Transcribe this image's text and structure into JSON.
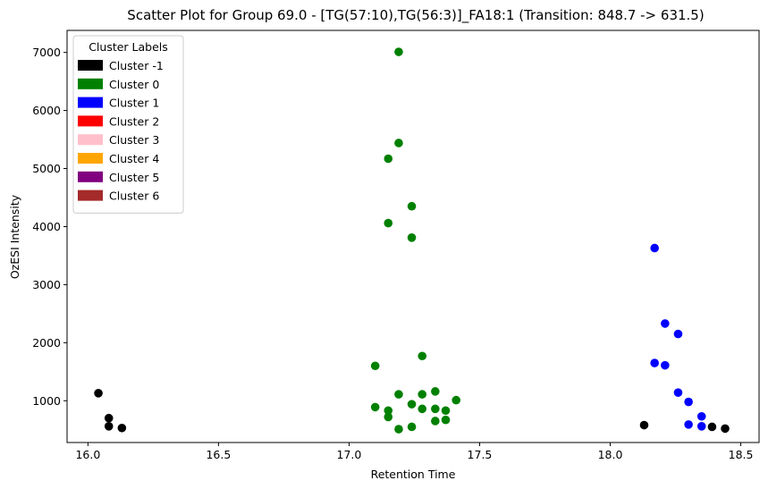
{
  "chart_data": {
    "type": "scatter",
    "title": "Scatter Plot for Group 69.0 - [TG(57:10),TG(56:3)]_FA18:1 (Transition: 848.7 -> 631.5)",
    "xlabel": "Retention Time",
    "ylabel": "OzESI Intensity",
    "xlim": [
      15.92,
      18.57
    ],
    "ylim": [
      280,
      7380
    ],
    "xticks": [
      16.0,
      16.5,
      17.0,
      17.5,
      18.0,
      18.5
    ],
    "xtick_labels": [
      "16.0",
      "16.5",
      "17.0",
      "17.5",
      "18.0",
      "18.5"
    ],
    "yticks": [
      1000,
      2000,
      3000,
      4000,
      5000,
      6000,
      7000
    ],
    "ytick_labels": [
      "1000",
      "2000",
      "3000",
      "4000",
      "5000",
      "6000",
      "7000"
    ],
    "legend": {
      "title": "Cluster Labels",
      "placement": "top-left",
      "entries": [
        {
          "label": "Cluster -1",
          "color": "#000000"
        },
        {
          "label": "Cluster 0",
          "color": "#008000"
        },
        {
          "label": "Cluster 1",
          "color": "#0000ff"
        },
        {
          "label": "Cluster 2",
          "color": "#ff0000"
        },
        {
          "label": "Cluster 3",
          "color": "#ffc0cb"
        },
        {
          "label": "Cluster 4",
          "color": "#ffa500"
        },
        {
          "label": "Cluster 5",
          "color": "#800080"
        },
        {
          "label": "Cluster 6",
          "color": "#a52a2a"
        }
      ]
    },
    "series": [
      {
        "cluster": -1,
        "color": "#000000",
        "points": [
          [
            16.04,
            1130
          ],
          [
            16.08,
            700
          ],
          [
            16.08,
            560
          ],
          [
            16.13,
            530
          ],
          [
            18.13,
            580
          ],
          [
            18.39,
            550
          ],
          [
            18.44,
            520
          ]
        ]
      },
      {
        "cluster": 0,
        "color": "#008000",
        "points": [
          [
            17.19,
            7010
          ],
          [
            17.19,
            5440
          ],
          [
            17.15,
            5170
          ],
          [
            17.24,
            4350
          ],
          [
            17.15,
            4060
          ],
          [
            17.24,
            3810
          ],
          [
            17.28,
            1770
          ],
          [
            17.1,
            1600
          ],
          [
            17.19,
            1110
          ],
          [
            17.28,
            1110
          ],
          [
            17.33,
            1160
          ],
          [
            17.41,
            1010
          ],
          [
            17.24,
            940
          ],
          [
            17.1,
            890
          ],
          [
            17.15,
            830
          ],
          [
            17.28,
            860
          ],
          [
            17.33,
            860
          ],
          [
            17.37,
            830
          ],
          [
            17.15,
            720
          ],
          [
            17.33,
            650
          ],
          [
            17.37,
            670
          ],
          [
            17.19,
            510
          ],
          [
            17.24,
            550
          ]
        ]
      },
      {
        "cluster": 1,
        "color": "#0000ff",
        "points": [
          [
            18.17,
            3630
          ],
          [
            18.21,
            2330
          ],
          [
            18.26,
            2150
          ],
          [
            18.17,
            1650
          ],
          [
            18.21,
            1610
          ],
          [
            18.26,
            1140
          ],
          [
            18.3,
            980
          ],
          [
            18.35,
            730
          ],
          [
            18.3,
            590
          ],
          [
            18.35,
            560
          ]
        ]
      }
    ]
  }
}
